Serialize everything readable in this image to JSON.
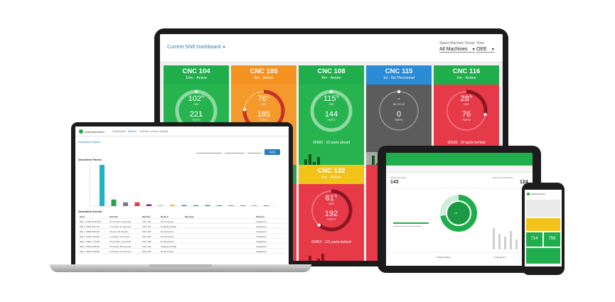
{
  "dashboard": {
    "title": "Current Shift Dashboard",
    "group_label": "Select Machine Group",
    "group_value": "All Machines",
    "view_label": "View",
    "view_value": "OEE",
    "tiles": [
      {
        "name": "CNC 104",
        "status": "10m · Active",
        "oee": "102",
        "oee_unit": "%",
        "oee_label": "OEE",
        "parts": "221",
        "parts_label": "PARTS",
        "footer": "",
        "color": "#1fae4b",
        "body": "#27b44f",
        "ring": "#8fd9a3",
        "oee_progress": 1.0
      },
      {
        "name": "CNC 105",
        "status": "9m · Active",
        "oee": "76",
        "oee_unit": "%",
        "oee_label": "OEE",
        "parts": "185",
        "parts_label": "PARTS",
        "footer": "",
        "color": "#f39221",
        "body": "#f49a2c",
        "ring": "#c4312a",
        "oee_progress": 0.76
      },
      {
        "name": "CNC 108",
        "status": "8m · Active",
        "oee": "115",
        "oee_unit": "%",
        "oee_label": "OEE",
        "parts": "144",
        "parts_label": "PARTS",
        "footer": "00582 · 19 parts ahead",
        "color": "#1fae4b",
        "body": "#27b44f",
        "ring": "#8fd9a3",
        "oee_progress": 1.0
      },
      {
        "name": "CNC 115",
        "status": "1d · No Personnel",
        "oee": "-",
        "oee_unit": "",
        "oee_label": "IN-CYCLE",
        "parts": "0",
        "parts_label": "PARTS",
        "footer": "",
        "color": "#2a8bd6",
        "body": "#5c5c5c",
        "ring": "#9a9a9a",
        "oee_progress": 0.0
      },
      {
        "name": "CNC 116",
        "status": "2m · Active",
        "oee": "28",
        "oee_unit": "%",
        "oee_label": "OEE",
        "parts": "76",
        "parts_label": "PARTS",
        "footer": "00185 · 34 parts behind",
        "color": "#1fae4b",
        "body": "#e63a49",
        "ring": "#8a1620",
        "oee_progress": 0.28
      },
      {
        "name": "CNC 132",
        "status": "6m · Active",
        "oee": "61",
        "oee_unit": "%",
        "oee_label": "OEE",
        "parts": "192",
        "parts_label": "PARTS",
        "footer": "00453 · 121 parts behind",
        "color": "#f2c318",
        "body": "#e63a49",
        "ring": "#8a1620",
        "oee_progress": 0.61
      }
    ],
    "spark_labels": [
      "6:30 AM",
      "6:30 AM",
      "6:30 AM",
      "6:30 AM"
    ]
  },
  "laptop": {
    "brand": "machinemetrics",
    "nav": [
      "Dashboards",
      "Reports",
      "Operator",
      "Assets",
      "Settings"
    ],
    "report_title": "Downtime Report",
    "section_title": "Downtime Pareto",
    "apply_label": "Apply",
    "events_title": "Downtime Events",
    "columns": [
      "Start",
      "Duration",
      "Machine",
      "Reason",
      "Message",
      "Planned"
    ],
    "rows": [
      [
        "Mar 1, 2020 10:35 AM",
        "10 minutes, 8 seconds",
        "CNC 104",
        "No Personnel",
        "",
        "Unplanned"
      ],
      [
        "Mar 1, 2020 9:21 AM",
        "7 minutes, 12 seconds",
        "CNC 116",
        "Unplanned Fault",
        "",
        "Unplanned"
      ],
      [
        "Mar 1, 2020 8:46 AM",
        "8 hours, 29 minutes",
        "CNC 115",
        "No Personnel",
        "",
        "Unplanned"
      ],
      [
        "Mar 1, 2020 7:52 AM",
        "4 minutes, 8 seconds",
        "CNC 105",
        "No Personnel",
        "",
        "Unplanned"
      ],
      [
        "Mar 1, 2020 7:14 AM",
        "12 minutes, 3 seconds",
        "CNC 108",
        "No Personnel",
        "",
        "Unplanned"
      ],
      [
        "Mar 1, 2020 6:58 AM",
        "9 minutes, 46 seconds",
        "CNC 132",
        "Unplanned Fault",
        "",
        "Unplanned"
      ],
      [
        "Mar 1, 2020 6:40 AM",
        "6 minutes, 21 seconds",
        "CNC 104",
        "No Personnel",
        "",
        "Unplanned"
      ]
    ],
    "pareto_values": [
      44,
      7,
      4,
      4,
      2,
      1.5,
      1.5,
      1,
      1,
      1,
      0.8,
      0.6,
      0.5,
      0.5,
      0.4
    ],
    "pareto_colors": [
      "#1fb3c9",
      "#2aa24a",
      "#7a7a7a",
      "#e63a49",
      "#7a2d8c",
      "#d4d4d4",
      "#f2c318",
      "#2b7bc4",
      "#1fae4b",
      "#1fae4b",
      "#1fae4b",
      "#888",
      "#888",
      "#e39b2c",
      "#888"
    ]
  },
  "tablet": {
    "left_label": "Total Parts Made",
    "left_value": "143",
    "right_label": "Expected Parts Made",
    "right_value": "124",
    "donut_value": "1%",
    "bottom_left": "Report Parts",
    "bottom_right": "Categorize"
  },
  "phone": {
    "brand": "machinemetrics",
    "values": [
      "714",
      "756"
    ]
  }
}
